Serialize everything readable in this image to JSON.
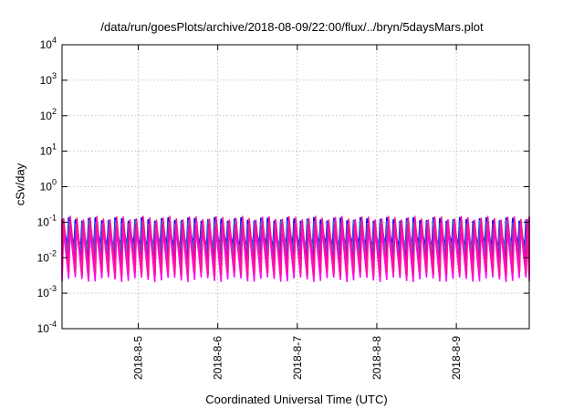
{
  "chart_data": {
    "type": "line",
    "title": "/data/run/goesPlots/archive/2018-08-09/22:00/flux/../bryn/5daysMars.plot",
    "xlabel": "Coordinated Universal Time (UTC)",
    "ylabel": "cSv/day",
    "y_scale": "log",
    "ylim": [
      0.0001,
      10000
    ],
    "y_ticks": [
      {
        "exp": "-4",
        "value": 0.0001
      },
      {
        "exp": "-3",
        "value": 0.001
      },
      {
        "exp": "-2",
        "value": 0.01
      },
      {
        "exp": "-1",
        "value": 0.1
      },
      {
        "exp": "0",
        "value": 1
      },
      {
        "exp": "1",
        "value": 10
      },
      {
        "exp": "2",
        "value": 100
      },
      {
        "exp": "3",
        "value": 1000
      },
      {
        "exp": "4",
        "value": 10000
      }
    ],
    "y_tick_base": "10",
    "xlim": [
      "2018-08-04 01:00",
      "2018-08-09 22:00"
    ],
    "x_ticks": [
      "2018-8-5",
      "2018-8-6",
      "2018-8-7",
      "2018-8-8",
      "2018-8-9"
    ],
    "grid": true,
    "pattern": {
      "cycles_per_day": 12,
      "description_note": "sawtooth oscillation repeating every ~2 hours"
    },
    "series": [
      {
        "color": "#0000ff",
        "peak": 0.12,
        "trough": 0.02
      },
      {
        "color": "#3355ff",
        "peak": 0.1,
        "trough": 0.016
      },
      {
        "color": "#00aaaa",
        "peak": 0.09,
        "trough": 0.012
      },
      {
        "color": "#8800cc",
        "peak": 0.085,
        "trough": 0.008
      },
      {
        "color": "#cc00cc",
        "peak": 0.08,
        "trough": 0.004
      },
      {
        "color": "#ff00ff",
        "peak": 0.075,
        "trough": 0.0025
      },
      {
        "color": "#ff1493",
        "peak": 0.13,
        "trough": 0.0035
      }
    ]
  }
}
